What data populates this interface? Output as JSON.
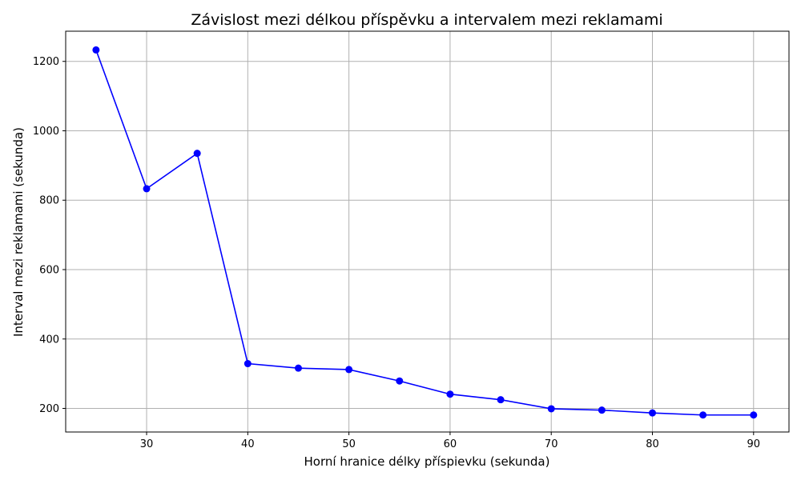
{
  "chart_data": {
    "type": "line",
    "title": "Závislost mezi délkou příspěvku a intervalem mezi reklamami",
    "xlabel": "Horní hranice délky příspievku (sekunda)",
    "ylabel": "Interval mezi reklamami (sekunda)",
    "xlim": [
      22,
      93.5
    ],
    "ylim": [
      132,
      1287
    ],
    "xticks": [
      30,
      40,
      50,
      60,
      70,
      80,
      90
    ],
    "yticks": [
      200,
      400,
      600,
      800,
      1000,
      1200
    ],
    "grid": true,
    "series": [
      {
        "color": "#0000ff",
        "marker": "circle",
        "x": [
          25,
          30,
          35,
          40,
          45,
          50,
          55,
          60,
          65,
          70,
          75,
          80,
          85,
          90
        ],
        "y": [
          1233,
          833,
          935,
          329,
          316,
          312,
          279,
          241,
          225,
          199,
          195,
          187,
          181,
          181
        ]
      }
    ]
  }
}
